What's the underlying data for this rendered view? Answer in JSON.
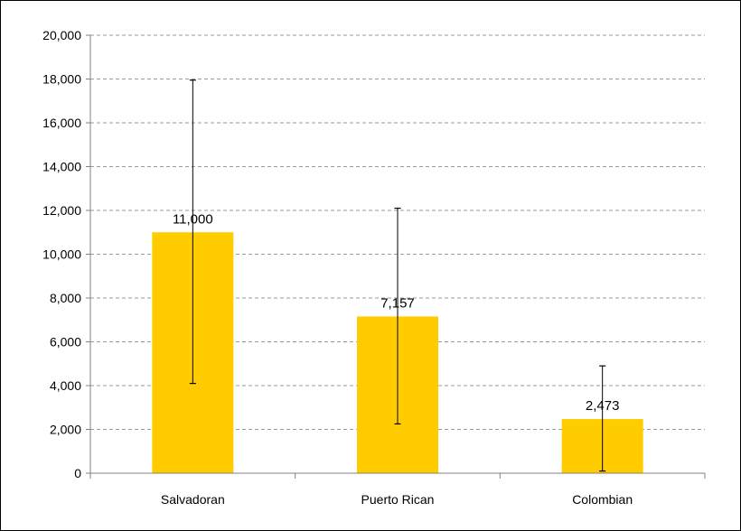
{
  "chart_data": {
    "type": "bar",
    "categories": [
      "Salvadoran",
      "Puerto Rican",
      "Colombian"
    ],
    "values": [
      11000,
      7157,
      2473
    ],
    "data_labels": [
      "11,000",
      "7,157",
      "2,473"
    ],
    "error_bars": [
      {
        "low": 4100,
        "high": 17950
      },
      {
        "low": 2250,
        "high": 12100
      },
      {
        "low": 100,
        "high": 4900
      }
    ],
    "ylim": [
      0,
      20000
    ],
    "yticks": [
      0,
      2000,
      4000,
      6000,
      8000,
      10000,
      12000,
      14000,
      16000,
      18000,
      20000
    ],
    "ytick_labels": [
      "0",
      "2,000",
      "4,000",
      "6,000",
      "8,000",
      "10,000",
      "12,000",
      "14,000",
      "16,000",
      "18,000",
      "20,000"
    ],
    "grid": true,
    "legend": "none",
    "bar_color": "#FFCC00",
    "title": "",
    "xlabel": "",
    "ylabel": ""
  }
}
